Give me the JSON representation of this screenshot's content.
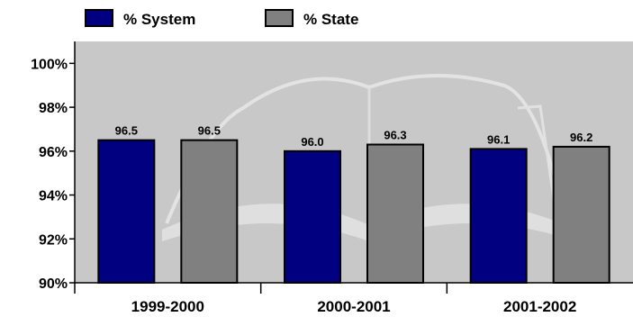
{
  "chart_data": {
    "type": "bar",
    "categories": [
      "1999-2000",
      "2000-2001",
      "2001-2002"
    ],
    "series": [
      {
        "name": "% System",
        "values": [
          96.5,
          96.0,
          96.1
        ],
        "labels": [
          "96.5",
          "96.0",
          "96.1"
        ],
        "color": "#000080"
      },
      {
        "name": "% State",
        "values": [
          96.5,
          96.3,
          96.2
        ],
        "labels": [
          "96.5",
          "96.3",
          "96.2"
        ],
        "color": "#808080"
      }
    ],
    "yticks": [
      {
        "value": 90,
        "label": "90%"
      },
      {
        "value": 92,
        "label": "92%"
      },
      {
        "value": 94,
        "label": "94%"
      },
      {
        "value": 96,
        "label": "96%"
      },
      {
        "value": 98,
        "label": "98%"
      },
      {
        "value": 100,
        "label": "100%"
      }
    ],
    "ylim": [
      90,
      101
    ],
    "legend_position": "top-left",
    "grid": false,
    "plot_background": "#c8c8c8",
    "title": "",
    "xlabel": "",
    "ylabel": ""
  }
}
